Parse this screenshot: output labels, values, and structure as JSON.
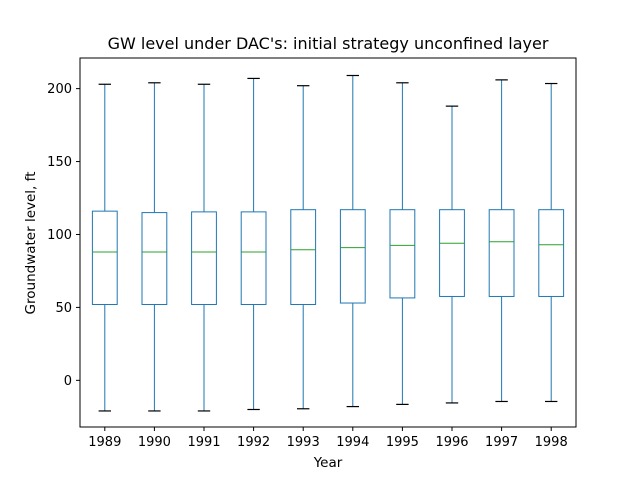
{
  "chart_data": {
    "type": "box",
    "title": "GW level under DAC's: initial strategy unconfined layer",
    "xlabel": "Year",
    "ylabel": "Groundwater level, ft",
    "ylim": [
      -32,
      221
    ],
    "yticks": [
      0,
      50,
      100,
      150,
      200
    ],
    "grid": false,
    "categories": [
      "1989",
      "1990",
      "1991",
      "1992",
      "1993",
      "1994",
      "1995",
      "1996",
      "1997",
      "1998"
    ],
    "boxes": [
      {
        "whisker_low": -21,
        "q1": 52,
        "median": 88,
        "q3": 116,
        "whisker_high": 203
      },
      {
        "whisker_low": -21,
        "q1": 52,
        "median": 88,
        "q3": 115,
        "whisker_high": 204
      },
      {
        "whisker_low": -21,
        "q1": 52,
        "median": 88,
        "q3": 115.5,
        "whisker_high": 203
      },
      {
        "whisker_low": -20,
        "q1": 52,
        "median": 88,
        "q3": 115.5,
        "whisker_high": 207
      },
      {
        "whisker_low": -19.5,
        "q1": 52,
        "median": 89.5,
        "q3": 117,
        "whisker_high": 202
      },
      {
        "whisker_low": -18,
        "q1": 53,
        "median": 91,
        "q3": 117,
        "whisker_high": 209
      },
      {
        "whisker_low": -16.5,
        "q1": 56.5,
        "median": 92.5,
        "q3": 117,
        "whisker_high": 204
      },
      {
        "whisker_low": -15.5,
        "q1": 57.5,
        "median": 94,
        "q3": 117,
        "whisker_high": 188
      },
      {
        "whisker_low": -14.5,
        "q1": 57.5,
        "median": 95,
        "q3": 117,
        "whisker_high": 206
      },
      {
        "whisker_low": -14.5,
        "q1": 57.5,
        "median": 93,
        "q3": 117,
        "whisker_high": 203.5
      }
    ],
    "colors": {
      "box": "#1f77b4",
      "median": "#2ca02c",
      "axes": "#000000"
    }
  }
}
